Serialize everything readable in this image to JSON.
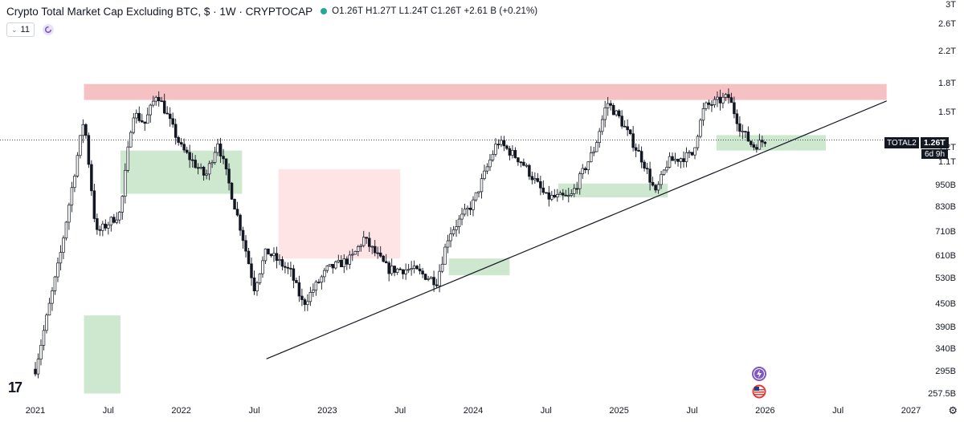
{
  "header": {
    "title": "Crypto Total Market Cap Excluding BTC, $ · 1W · CRYPTOCAP",
    "ohlc": "O1.26T H1.27T L1.24T C1.26T +2.61 B (+0.21%)",
    "status_color": "#26a69a"
  },
  "indicators": {
    "count_label": "11",
    "reload_icon": "refresh-icon"
  },
  "price_tag": {
    "symbol": "TOTAL2",
    "value": "1.26T",
    "countdown": "6d 9h"
  },
  "y_axis_labels": [
    "3T",
    "2.6T",
    "2.2T",
    "1.8T",
    "1.5T",
    "1.2T",
    "1.1T",
    "950B",
    "830B",
    "710B",
    "610B",
    "530B",
    "450B",
    "390B",
    "340B",
    "295B",
    "257.5B"
  ],
  "x_axis_labels": [
    "2021",
    "Jul",
    "2022",
    "Jul",
    "2023",
    "Jul",
    "2024",
    "Jul",
    "2025",
    "Jul",
    "2026",
    "Jul",
    "2027"
  ],
  "colors": {
    "bull": "#ffffff",
    "bear": "#131722",
    "wick": "#131722",
    "resistance_zone": "#f4b6b9",
    "cloud_bull": "#a5d6a7",
    "cloud_bear": "#ffcdd2",
    "trendline": "#131722",
    "last_price_line": "#131722"
  },
  "events": {
    "lightning_icon": "lightning-icon",
    "flag_icon": "us-flag-icon"
  },
  "chart_data": {
    "type": "candlestick",
    "title": "Crypto Total Market Cap Excluding BTC, $ · 1W · CRYPTOCAP",
    "timeframe": "1W",
    "y_scale": "log",
    "ylim": [
      257.5,
      3000
    ],
    "y_unit": "B USD",
    "x_range": [
      "2021-01",
      "2027-01"
    ],
    "last": {
      "open": 1260,
      "high": 1270,
      "low": 1240,
      "close": 1260,
      "change": "+2.61 B (+0.21%)"
    },
    "price_path": [
      [
        "2021-01",
        300
      ],
      [
        "2021-03",
        600
      ],
      [
        "2021-05",
        1450
      ],
      [
        "2021-06",
        700
      ],
      [
        "2021-08",
        800
      ],
      [
        "2021-09",
        1500
      ],
      [
        "2021-10",
        1400
      ],
      [
        "2021-11",
        1700
      ],
      [
        "2022-01",
        1200
      ],
      [
        "2022-03",
        1000
      ],
      [
        "2022-04",
        1250
      ],
      [
        "2022-06",
        700
      ],
      [
        "2022-07",
        500
      ],
      [
        "2022-08",
        630
      ],
      [
        "2022-10",
        550
      ],
      [
        "2022-11",
        450
      ],
      [
        "2023-01",
        560
      ],
      [
        "2023-03",
        600
      ],
      [
        "2023-04",
        680
      ],
      [
        "2023-06",
        560
      ],
      [
        "2023-08",
        560
      ],
      [
        "2023-10",
        520
      ],
      [
        "2023-11",
        700
      ],
      [
        "2024-01",
        850
      ],
      [
        "2024-03",
        1250
      ],
      [
        "2024-05",
        1100
      ],
      [
        "2024-07",
        880
      ],
      [
        "2024-09",
        880
      ],
      [
        "2024-11",
        1200
      ],
      [
        "2024-12",
        1600
      ],
      [
        "2025-01",
        1450
      ],
      [
        "2025-03",
        1100
      ],
      [
        "2025-04",
        900
      ],
      [
        "2025-05",
        1100
      ],
      [
        "2025-07",
        1150
      ],
      [
        "2025-08",
        1550
      ],
      [
        "2025-10",
        1650
      ],
      [
        "2025-11",
        1350
      ],
      [
        "2025-12",
        1210
      ],
      [
        "2026-01",
        1260
      ]
    ],
    "resistance_zone": {
      "from": "2021-05",
      "to": "2026-11",
      "low": 1620,
      "high": 1790
    },
    "trendline": {
      "from": [
        "2022-08",
        320
      ],
      "to": [
        "2026-11",
        1610
      ]
    },
    "ichimoku_cloud": [
      {
        "from": "2021-05",
        "to": "2021-08",
        "color": "bull",
        "top": 420,
        "bottom": 257.5
      },
      {
        "from": "2021-08",
        "to": "2022-06",
        "color": "bull",
        "top": 1180,
        "bottom": 900
      },
      {
        "from": "2022-09",
        "to": "2023-07",
        "color": "bear",
        "top": 1050,
        "bottom": 600
      },
      {
        "from": "2023-11",
        "to": "2024-04",
        "color": "bull",
        "top": 600,
        "bottom": 540
      },
      {
        "from": "2024-08",
        "to": "2025-05",
        "color": "bull",
        "top": 960,
        "bottom": 880
      },
      {
        "from": "2025-09",
        "to": "2026-06",
        "color": "bull",
        "top": 1300,
        "bottom": 1180
      }
    ]
  }
}
